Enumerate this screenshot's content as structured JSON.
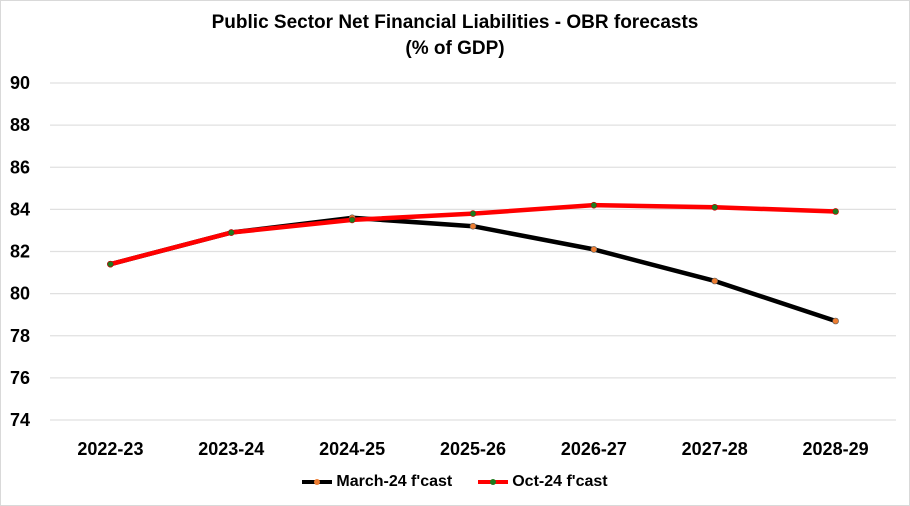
{
  "chart_data": {
    "type": "line",
    "title": "Public Sector Net Financial Liabilities - OBR forecasts",
    "subtitle": "(% of GDP)",
    "categories": [
      "2022-23",
      "2023-24",
      "2024-25",
      "2025-26",
      "2026-27",
      "2027-28",
      "2028-29"
    ],
    "ylim": [
      74,
      90
    ],
    "yticks": [
      74,
      76,
      78,
      80,
      82,
      84,
      86,
      88,
      90
    ],
    "grid": true,
    "legend": "bottom",
    "series": [
      {
        "name": "March-24 f'cast",
        "values": [
          81.4,
          82.9,
          83.6,
          83.2,
          82.1,
          80.6,
          78.7
        ],
        "color": "#000000",
        "marker_color": "#ed7d31"
      },
      {
        "name": "Oct-24 f'cast",
        "values": [
          81.4,
          82.9,
          83.5,
          83.8,
          84.2,
          84.1,
          83.9
        ],
        "color": "#ff0000",
        "marker_color": "#1e7b1e"
      }
    ]
  }
}
